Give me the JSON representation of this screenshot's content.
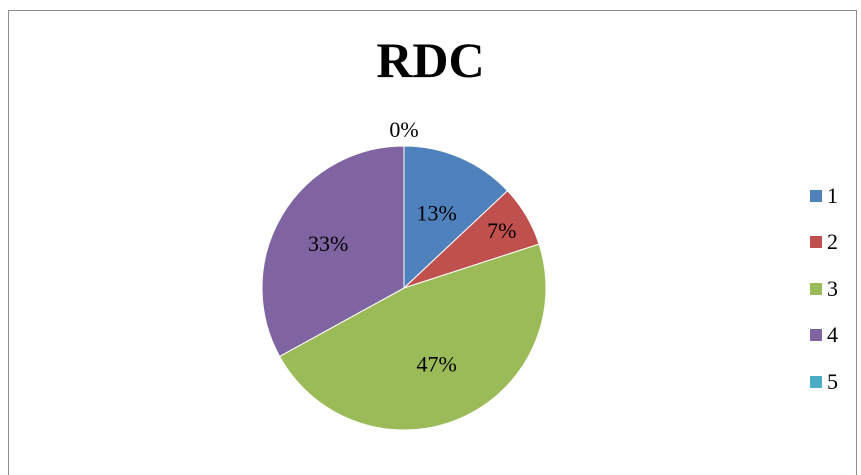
{
  "chart_data": {
    "type": "pie",
    "title": "RDC",
    "categories": [
      "1",
      "2",
      "3",
      "4",
      "5"
    ],
    "values": [
      13,
      7,
      47,
      33,
      0
    ],
    "data_labels": [
      "13%",
      "7%",
      "47%",
      "33%",
      "0%"
    ],
    "colors": [
      "#4f81bd",
      "#c0504d",
      "#9bbb59",
      "#8064a2",
      "#4bacc6"
    ],
    "legend_position": "right"
  }
}
